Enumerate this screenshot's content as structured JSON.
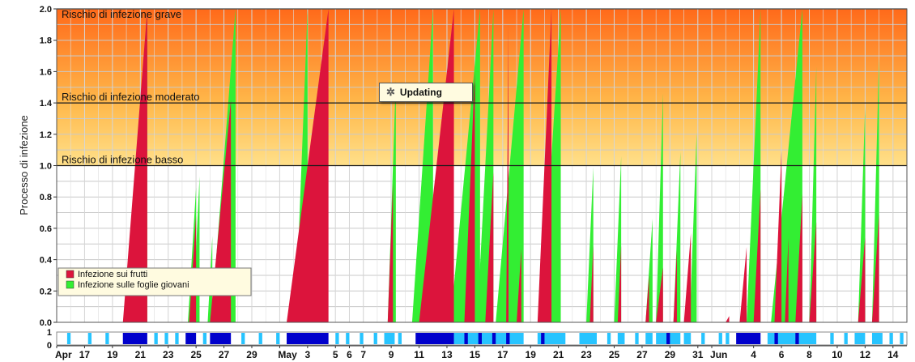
{
  "chart_data": {
    "type": "area",
    "ylabel": "Processo di infezione",
    "ylim": [
      0,
      2.0
    ],
    "yticks": [
      "0.0",
      "0.2",
      "0.4",
      "0.6",
      "0.8",
      "1.0",
      "1.2",
      "1.4",
      "1.6",
      "1.8",
      "2.0"
    ],
    "grid": true,
    "xlim": [
      "2024-04-15",
      "2024-06-15"
    ],
    "x_tick_labels": [
      {
        "date": "2024-04-15",
        "label": "Apr"
      },
      {
        "date": "2024-04-17",
        "label": "17"
      },
      {
        "date": "2024-04-19",
        "label": "19"
      },
      {
        "date": "2024-04-21",
        "label": "21"
      },
      {
        "date": "2024-04-23",
        "label": "23"
      },
      {
        "date": "2024-04-25",
        "label": "25"
      },
      {
        "date": "2024-04-27",
        "label": "27"
      },
      {
        "date": "2024-04-29",
        "label": "29"
      },
      {
        "date": "2024-05-01",
        "label": "May"
      },
      {
        "date": "2024-05-03",
        "label": "3"
      },
      {
        "date": "2024-05-05",
        "label": "5"
      },
      {
        "date": "2024-05-06",
        "label": "6"
      },
      {
        "date": "2024-05-07",
        "label": "7"
      },
      {
        "date": "2024-05-09",
        "label": "9"
      },
      {
        "date": "2024-05-11",
        "label": "11"
      },
      {
        "date": "2024-05-13",
        "label": "13"
      },
      {
        "date": "2024-05-15",
        "label": "15"
      },
      {
        "date": "2024-05-17",
        "label": "17"
      },
      {
        "date": "2024-05-19",
        "label": "19"
      },
      {
        "date": "2024-05-21",
        "label": "21"
      },
      {
        "date": "2024-05-23",
        "label": "23"
      },
      {
        "date": "2024-05-25",
        "label": "25"
      },
      {
        "date": "2024-05-27",
        "label": "27"
      },
      {
        "date": "2024-05-29",
        "label": "29"
      },
      {
        "date": "2024-05-31",
        "label": "31"
      },
      {
        "date": "2024-06-01",
        "label": "Jun"
      },
      {
        "date": "2024-06-04",
        "label": "4"
      },
      {
        "date": "2024-06-06",
        "label": "6"
      },
      {
        "date": "2024-06-08",
        "label": "8"
      },
      {
        "date": "2024-06-10",
        "label": "10"
      },
      {
        "date": "2024-06-12",
        "label": "12"
      },
      {
        "date": "2024-06-14",
        "label": "14"
      }
    ],
    "risk_bands": [
      {
        "label": "Rischio di infezione grave",
        "from": 1.4,
        "to": 2.0,
        "color_top": "#ff6a1a",
        "color_bottom": "#ffb84a"
      },
      {
        "label": "Rischio di infezione moderato",
        "from": 1.0,
        "to": 1.4,
        "color_top": "#ffb84a",
        "color_bottom": "#ffe08a"
      },
      {
        "label": "Rischio di infezione basso",
        "from": 0.0,
        "to": 1.0,
        "color_top": "#ffffff",
        "color_bottom": "#ffffff"
      }
    ],
    "threshold_lines": [
      1.0,
      1.4,
      2.0
    ],
    "legend": {
      "placement": "bottom-left"
    },
    "series": [
      {
        "name": "Infezione sulle foglie giovani",
        "color": "#33ee33",
        "events": [
          {
            "start": "2024-04-20T00:00",
            "end": "2024-04-21T12:00",
            "peak": 2.0
          },
          {
            "start": "2024-04-24T10:00",
            "end": "2024-04-25T00:00",
            "peak": 0.86
          },
          {
            "start": "2024-04-24T18:00",
            "end": "2024-04-25T06:00",
            "peak": 0.93
          },
          {
            "start": "2024-04-25T20:00",
            "end": "2024-04-26T04:00",
            "peak": 0.55
          },
          {
            "start": "2024-04-26T02:00",
            "end": "2024-04-27T20:00",
            "peak": 2.0
          },
          {
            "start": "2024-05-02T03:00",
            "end": "2024-05-03T00:00",
            "peak": 2.0
          },
          {
            "start": "2024-05-08T18:00",
            "end": "2024-05-09T08:00",
            "peak": 1.55
          },
          {
            "start": "2024-05-10T12:00",
            "end": "2024-05-12T00:00",
            "peak": 2.0
          },
          {
            "start": "2024-05-13T06:00",
            "end": "2024-05-15T09:00",
            "peak": 2.0
          },
          {
            "start": "2024-05-15T04:00",
            "end": "2024-05-16T08:00",
            "peak": 2.0
          },
          {
            "start": "2024-05-16T12:00",
            "end": "2024-05-18T12:00",
            "peak": 2.0
          },
          {
            "start": "2024-05-19T18:00",
            "end": "2024-05-21T04:00",
            "peak": 2.0
          },
          {
            "start": "2024-05-23T00:00",
            "end": "2024-05-23T12:00",
            "peak": 0.99
          },
          {
            "start": "2024-05-25T00:00",
            "end": "2024-05-25T12:00",
            "peak": 1.06
          },
          {
            "start": "2024-05-27T06:00",
            "end": "2024-05-27T18:00",
            "peak": 0.66
          },
          {
            "start": "2024-05-28T00:00",
            "end": "2024-05-28T12:00",
            "peak": 1.46
          },
          {
            "start": "2024-05-29T06:00",
            "end": "2024-05-29T18:00",
            "peak": 1.09
          },
          {
            "start": "2024-05-30T10:00",
            "end": "2024-05-30T22:00",
            "peak": 1.21
          },
          {
            "start": "2024-06-03T12:00",
            "end": "2024-06-04T12:00",
            "peak": 2.0
          },
          {
            "start": "2024-06-05T06:00",
            "end": "2024-06-07T12:00",
            "peak": 2.0
          },
          {
            "start": "2024-06-08T00:00",
            "end": "2024-06-08T12:00",
            "peak": 1.63
          },
          {
            "start": "2024-06-11T12:00",
            "end": "2024-06-12T00:00",
            "peak": 1.37
          },
          {
            "start": "2024-06-12T12:00",
            "end": "2024-06-13T00:00",
            "peak": 1.69
          }
        ]
      },
      {
        "name": "Infezione sui frutti",
        "color": "#dc143c",
        "events": [
          {
            "start": "2024-04-19T18:00",
            "end": "2024-04-21T12:00",
            "peak": 2.0
          },
          {
            "start": "2024-04-24T12:00",
            "end": "2024-04-25T00:00",
            "peak": 0.68
          },
          {
            "start": "2024-04-26T00:00",
            "end": "2024-04-27T12:00",
            "peak": 1.42
          },
          {
            "start": "2024-05-01T12:00",
            "end": "2024-05-04T12:00",
            "peak": 2.0
          },
          {
            "start": "2024-05-08T18:00",
            "end": "2024-05-09T03:00",
            "peak": 0.89
          },
          {
            "start": "2024-05-11T00:00",
            "end": "2024-05-13T12:00",
            "peak": 2.0
          },
          {
            "start": "2024-05-14T06:00",
            "end": "2024-05-15T00:00",
            "peak": 1.6
          },
          {
            "start": "2024-05-15T18:00",
            "end": "2024-05-16T08:00",
            "peak": 0.96
          },
          {
            "start": "2024-05-17T06:00",
            "end": "2024-05-17T10:00",
            "peak": 1.9
          },
          {
            "start": "2024-05-18T00:00",
            "end": "2024-05-18T08:00",
            "peak": 0.47
          },
          {
            "start": "2024-05-19T12:00",
            "end": "2024-05-20T12:00",
            "peak": 2.0
          },
          {
            "start": "2024-05-23T06:00",
            "end": "2024-05-23T12:00",
            "peak": 0.49
          },
          {
            "start": "2024-05-25T06:00",
            "end": "2024-05-25T12:00",
            "peak": 0.49
          },
          {
            "start": "2024-05-27T06:00",
            "end": "2024-05-27T12:00",
            "peak": 0.3
          },
          {
            "start": "2024-05-28T00:00",
            "end": "2024-05-28T12:00",
            "peak": 0.35
          },
          {
            "start": "2024-05-29T06:00",
            "end": "2024-05-29T12:00",
            "peak": 0.46
          },
          {
            "start": "2024-05-30T00:00",
            "end": "2024-05-30T12:00",
            "peak": 0.57
          },
          {
            "start": "2024-06-02T00:00",
            "end": "2024-06-02T06:00",
            "peak": 0.04
          },
          {
            "start": "2024-06-03T00:00",
            "end": "2024-06-03T12:00",
            "peak": 0.48
          },
          {
            "start": "2024-06-04T00:00",
            "end": "2024-06-04T12:00",
            "peak": 0.85
          },
          {
            "start": "2024-06-05T12:00",
            "end": "2024-06-06T00:00",
            "peak": 1.09
          },
          {
            "start": "2024-06-06T06:00",
            "end": "2024-06-06T12:00",
            "peak": 0.54
          },
          {
            "start": "2024-06-07T00:00",
            "end": "2024-06-07T12:00",
            "peak": 0.82
          },
          {
            "start": "2024-06-08T00:00",
            "end": "2024-06-08T12:00",
            "peak": 0.64
          },
          {
            "start": "2024-06-11T12:00",
            "end": "2024-06-12T00:00",
            "peak": 0.54
          },
          {
            "start": "2024-06-12T12:00",
            "end": "2024-06-13T00:00",
            "peak": 0.69
          }
        ]
      }
    ],
    "wetness_strip": {
      "ylim": [
        0,
        1
      ],
      "yticks": [
        "0",
        "1"
      ],
      "colors": {
        "light": "#27c4ff",
        "dark": "#0000cc"
      },
      "intervals": [
        {
          "start": "2024-04-15T18:00",
          "end": "2024-04-16T00:00",
          "level": "light"
        },
        {
          "start": "2024-04-17T06:00",
          "end": "2024-04-17T12:00",
          "level": "light"
        },
        {
          "start": "2024-04-18T12:00",
          "end": "2024-04-18T18:00",
          "level": "light"
        },
        {
          "start": "2024-04-19T18:00",
          "end": "2024-04-21T12:00",
          "level": "dark"
        },
        {
          "start": "2024-04-22T00:00",
          "end": "2024-04-22T06:00",
          "level": "light"
        },
        {
          "start": "2024-04-22T18:00",
          "end": "2024-04-23T00:00",
          "level": "light"
        },
        {
          "start": "2024-04-23T12:00",
          "end": "2024-04-23T18:00",
          "level": "light"
        },
        {
          "start": "2024-04-24T06:00",
          "end": "2024-04-25T00:00",
          "level": "dark"
        },
        {
          "start": "2024-04-25T12:00",
          "end": "2024-04-25T18:00",
          "level": "light"
        },
        {
          "start": "2024-04-26T00:00",
          "end": "2024-04-27T12:00",
          "level": "dark"
        },
        {
          "start": "2024-04-28T06:00",
          "end": "2024-04-28T12:00",
          "level": "light"
        },
        {
          "start": "2024-04-29T12:00",
          "end": "2024-04-29T18:00",
          "level": "light"
        },
        {
          "start": "2024-04-30T18:00",
          "end": "2024-05-01T00:00",
          "level": "light"
        },
        {
          "start": "2024-05-01T12:00",
          "end": "2024-05-04T12:00",
          "level": "dark"
        },
        {
          "start": "2024-05-05T00:00",
          "end": "2024-05-05T06:00",
          "level": "light"
        },
        {
          "start": "2024-05-05T18:00",
          "end": "2024-05-06T00:00",
          "level": "light"
        },
        {
          "start": "2024-05-06T18:00",
          "end": "2024-05-07T00:00",
          "level": "light"
        },
        {
          "start": "2024-05-07T18:00",
          "end": "2024-05-08T00:00",
          "level": "light"
        },
        {
          "start": "2024-05-08T12:00",
          "end": "2024-05-09T06:00",
          "level": "light"
        },
        {
          "start": "2024-05-09T12:00",
          "end": "2024-05-09T18:00",
          "level": "light"
        },
        {
          "start": "2024-05-10T18:00",
          "end": "2024-05-13T12:00",
          "level": "dark"
        },
        {
          "start": "2024-05-13T12:00",
          "end": "2024-05-18T12:00",
          "level": "light"
        },
        {
          "start": "2024-05-14T06:00",
          "end": "2024-05-14T12:00",
          "level": "dark"
        },
        {
          "start": "2024-05-15T06:00",
          "end": "2024-05-15T12:00",
          "level": "dark"
        },
        {
          "start": "2024-05-16T06:00",
          "end": "2024-05-16T12:00",
          "level": "dark"
        },
        {
          "start": "2024-05-17T06:00",
          "end": "2024-05-17T12:00",
          "level": "dark"
        },
        {
          "start": "2024-05-19T12:00",
          "end": "2024-05-21T12:00",
          "level": "light"
        },
        {
          "start": "2024-05-19T18:00",
          "end": "2024-05-20T00:00",
          "level": "dark"
        },
        {
          "start": "2024-05-22T12:00",
          "end": "2024-05-23T18:00",
          "level": "light"
        },
        {
          "start": "2024-05-24T12:00",
          "end": "2024-05-24T18:00",
          "level": "light"
        },
        {
          "start": "2024-05-25T06:00",
          "end": "2024-05-25T18:00",
          "level": "light"
        },
        {
          "start": "2024-05-26T12:00",
          "end": "2024-05-26T18:00",
          "level": "light"
        },
        {
          "start": "2024-05-27T06:00",
          "end": "2024-05-27T18:00",
          "level": "light"
        },
        {
          "start": "2024-05-28T00:00",
          "end": "2024-05-29T18:00",
          "level": "light"
        },
        {
          "start": "2024-05-28T18:00",
          "end": "2024-05-29T00:00",
          "level": "dark"
        },
        {
          "start": "2024-05-30T00:00",
          "end": "2024-05-30T12:00",
          "level": "light"
        },
        {
          "start": "2024-05-31T06:00",
          "end": "2024-05-31T12:00",
          "level": "light"
        },
        {
          "start": "2024-06-01T12:00",
          "end": "2024-06-01T18:00",
          "level": "light"
        },
        {
          "start": "2024-06-02T00:00",
          "end": "2024-06-02T06:00",
          "level": "light"
        },
        {
          "start": "2024-06-02T18:00",
          "end": "2024-06-04T12:00",
          "level": "dark"
        },
        {
          "start": "2024-06-05T00:00",
          "end": "2024-06-08T12:00",
          "level": "light"
        },
        {
          "start": "2024-06-05T12:00",
          "end": "2024-06-05T18:00",
          "level": "dark"
        },
        {
          "start": "2024-06-07T00:00",
          "end": "2024-06-07T06:00",
          "level": "dark"
        },
        {
          "start": "2024-06-09T12:00",
          "end": "2024-06-09T18:00",
          "level": "light"
        },
        {
          "start": "2024-06-10T12:00",
          "end": "2024-06-10T18:00",
          "level": "light"
        },
        {
          "start": "2024-06-11T06:00",
          "end": "2024-06-12T00:00",
          "level": "light"
        },
        {
          "start": "2024-06-12T12:00",
          "end": "2024-06-13T06:00",
          "level": "light"
        },
        {
          "start": "2024-06-13T18:00",
          "end": "2024-06-14T00:00",
          "level": "light"
        },
        {
          "start": "2024-06-14T12:00",
          "end": "2024-06-14T18:00",
          "level": "light"
        }
      ]
    }
  },
  "overlay": {
    "updating_label": "Updating"
  }
}
